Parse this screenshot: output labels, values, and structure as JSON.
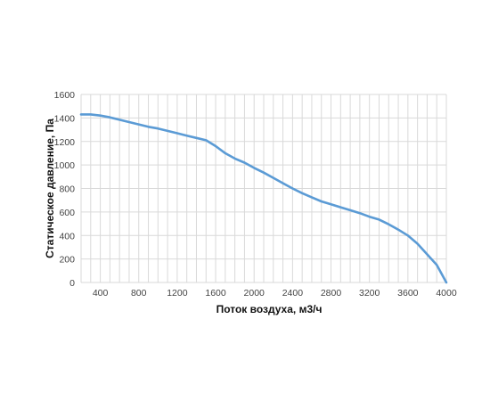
{
  "chart_data": {
    "type": "line",
    "xlabel": "Поток воздуха, м3/ч",
    "ylabel": "Статическое давление, Па",
    "xlim": [
      200,
      4000
    ],
    "ylim": [
      0,
      1600
    ],
    "x_ticks": [
      400,
      800,
      1200,
      1600,
      2000,
      2400,
      2800,
      3200,
      3600,
      4000
    ],
    "y_ticks": [
      0,
      200,
      400,
      600,
      800,
      1000,
      1200,
      1400,
      1600
    ],
    "grid": true,
    "line_color": "#5b9bd5",
    "series": [
      {
        "x": [
          200,
          300,
          400,
          500,
          600,
          700,
          800,
          900,
          1000,
          1100,
          1200,
          1300,
          1400,
          1500,
          1600,
          1700,
          1800,
          1900,
          2000,
          2100,
          2200,
          2300,
          2400,
          2500,
          2600,
          2700,
          2800,
          2900,
          3000,
          3100,
          3200,
          3300,
          3400,
          3500,
          3600,
          3700,
          3800,
          3900,
          4000
        ],
        "y": [
          1430,
          1430,
          1420,
          1405,
          1385,
          1365,
          1345,
          1325,
          1310,
          1290,
          1270,
          1250,
          1230,
          1210,
          1160,
          1100,
          1055,
          1020,
          975,
          935,
          890,
          845,
          800,
          760,
          725,
          690,
          665,
          640,
          615,
          590,
          560,
          535,
          495,
          450,
          400,
          330,
          240,
          150,
          0
        ]
      }
    ]
  }
}
